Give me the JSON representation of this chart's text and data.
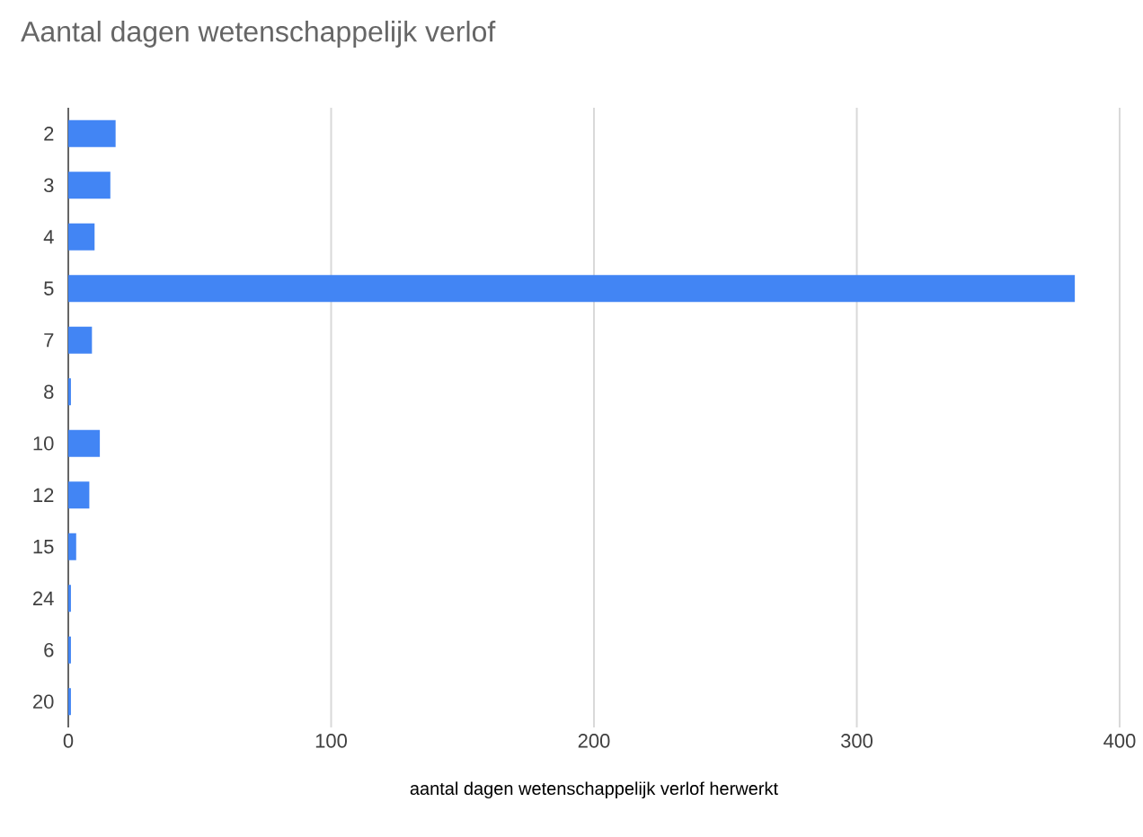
{
  "chart_data": {
    "type": "bar",
    "orientation": "horizontal",
    "title": "Aantal dagen wetenschappelijk verlof",
    "xlabel": "aantal dagen wetenschappelijk verlof herwerkt",
    "categories": [
      "2",
      "3",
      "4",
      "5",
      "7",
      "8",
      "10",
      "12",
      "15",
      "24",
      "6",
      "20"
    ],
    "values": [
      18,
      16,
      10,
      383,
      9,
      1,
      12,
      8,
      3,
      1,
      1,
      1
    ],
    "color": "#4285f4",
    "xlim": [
      0,
      400
    ],
    "xticks": [
      0,
      100,
      200,
      300,
      400
    ],
    "grid": "x"
  }
}
